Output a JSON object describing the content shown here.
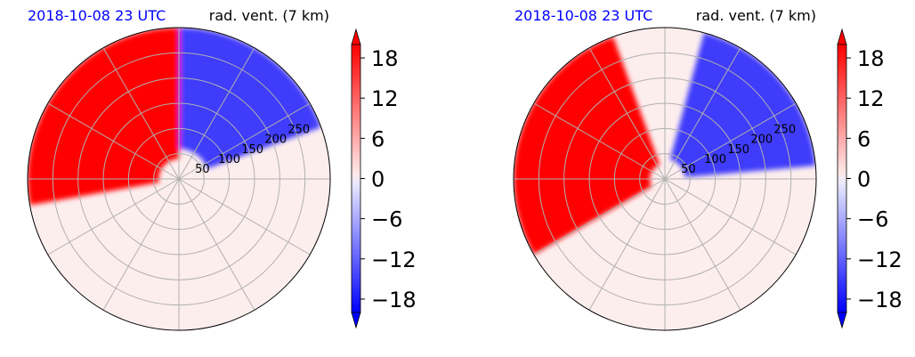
{
  "colors": {
    "positive": "#ff0000",
    "negative": "#0000ff",
    "near_zero": "#fdeeee",
    "grid": "#b0b0b0",
    "date_text": "#0000ff"
  },
  "chart_data": [
    {
      "type": "heatmap",
      "projection": "polar",
      "title_left": "2018-10-08 23 UTC",
      "title_right": "rad. vent. (7 km)",
      "radial_ticks": [
        50,
        100,
        150,
        200,
        250
      ],
      "radial_max": 300,
      "angular_gridlines_deg": [
        0,
        30,
        60,
        90,
        120,
        150,
        180,
        210,
        240,
        270,
        300,
        330
      ],
      "colorbar": {
        "ticks": [
          18,
          12,
          6,
          0,
          -6,
          -12,
          -18
        ],
        "range": [
          -20,
          20
        ],
        "extend": "both",
        "cmap": "bwr"
      },
      "regions": [
        {
          "sign": "positive",
          "description_value": 20,
          "sector_deg": [
            90,
            190
          ],
          "r_range": [
            40,
            300
          ]
        },
        {
          "sign": "negative",
          "description_value": -12,
          "sector_deg": [
            20,
            90
          ],
          "r_range": [
            60,
            300
          ]
        }
      ]
    },
    {
      "type": "heatmap",
      "projection": "polar",
      "title_left": "2018-10-08 23 UTC",
      "title_right": "rad. vent. (7 km)",
      "radial_ticks": [
        50,
        100,
        150,
        200,
        250
      ],
      "radial_max": 300,
      "angular_gridlines_deg": [
        0,
        30,
        60,
        90,
        120,
        150,
        180,
        210,
        240,
        270,
        300,
        330
      ],
      "colorbar": {
        "ticks": [
          18,
          12,
          6,
          0,
          -6,
          -12,
          -18
        ],
        "range": [
          -20,
          20
        ],
        "extend": "both",
        "cmap": "bwr"
      },
      "regions": [
        {
          "sign": "positive",
          "description_value": 20,
          "sector_deg": [
            110,
            210
          ],
          "r_range": [
            30,
            300
          ]
        },
        {
          "sign": "negative",
          "description_value": -14,
          "sector_deg": [
            5,
            75
          ],
          "r_range": [
            40,
            300
          ]
        }
      ]
    }
  ]
}
